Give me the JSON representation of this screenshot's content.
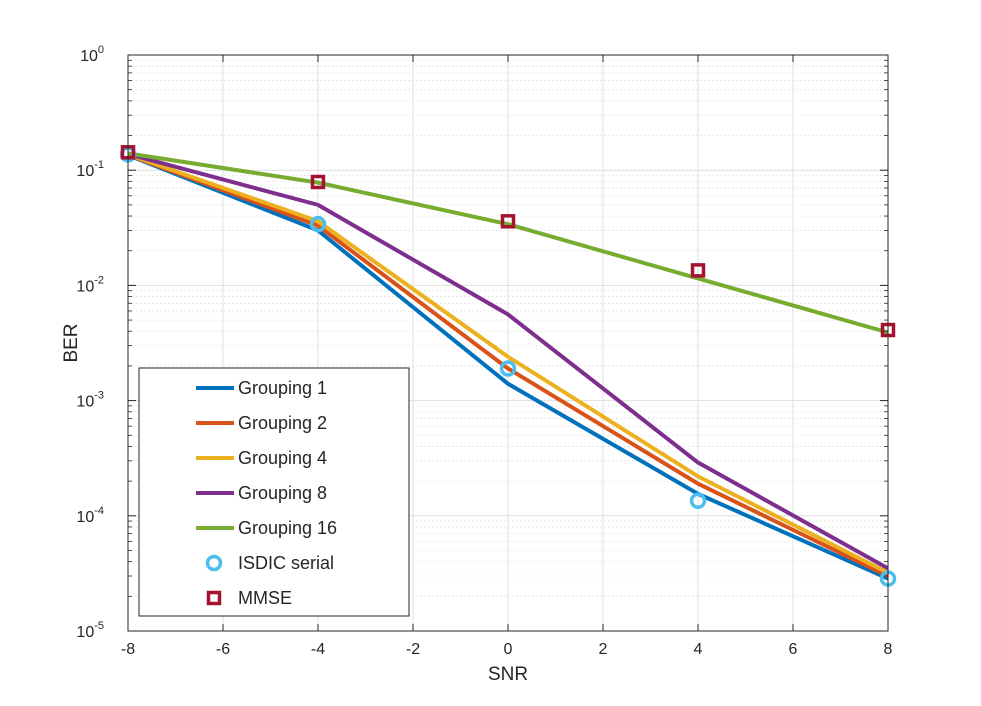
{
  "chart_data": {
    "type": "line",
    "xlabel": "SNR",
    "ylabel": "BER",
    "x": [
      -8,
      -4,
      0,
      4,
      8
    ],
    "xlim": [
      -8,
      8
    ],
    "ylim": [
      1e-05,
      1
    ],
    "yscale": "log",
    "grid": true,
    "minor_grid": true,
    "legend_position": "bottom-left",
    "x_ticks": [
      "-8",
      "-6",
      "-4",
      "-2",
      "0",
      "2",
      "4",
      "6",
      "8"
    ],
    "y_ticks": [
      {
        "base": "10",
        "exp": "0"
      },
      {
        "base": "10",
        "exp": "-1"
      },
      {
        "base": "10",
        "exp": "-2"
      },
      {
        "base": "10",
        "exp": "-3"
      },
      {
        "base": "10",
        "exp": "-4"
      },
      {
        "base": "10",
        "exp": "-5"
      }
    ],
    "series": [
      {
        "name": "Grouping 1",
        "style": "line",
        "color": "#0072BD",
        "values": [
          0.135,
          0.03,
          0.0014,
          0.000155,
          2.85e-05
        ]
      },
      {
        "name": "Grouping 2",
        "style": "line",
        "color": "#D95319",
        "values": [
          0.136,
          0.033,
          0.0019,
          0.00019,
          3e-05
        ]
      },
      {
        "name": "Grouping 4",
        "style": "line",
        "color": "#EDB120",
        "values": [
          0.137,
          0.036,
          0.0024,
          0.00022,
          3.2e-05
        ]
      },
      {
        "name": "Grouping 8",
        "style": "line",
        "color": "#7E2F8E",
        "values": [
          0.138,
          0.05,
          0.0056,
          0.00029,
          3.5e-05
        ]
      },
      {
        "name": "Grouping 16",
        "style": "line",
        "color": "#77AC30",
        "values": [
          0.14,
          0.078,
          0.034,
          0.0115,
          0.0039
        ]
      },
      {
        "name": "ISDIC serial",
        "style": "marker-circle",
        "color": "#4DBEEE",
        "values": [
          0.137,
          0.034,
          0.0019,
          0.000135,
          2.85e-05
        ]
      },
      {
        "name": "MMSE",
        "style": "marker-square",
        "color": "#A2142F",
        "values": [
          0.143,
          0.079,
          0.036,
          0.0135,
          0.0041
        ]
      }
    ]
  }
}
